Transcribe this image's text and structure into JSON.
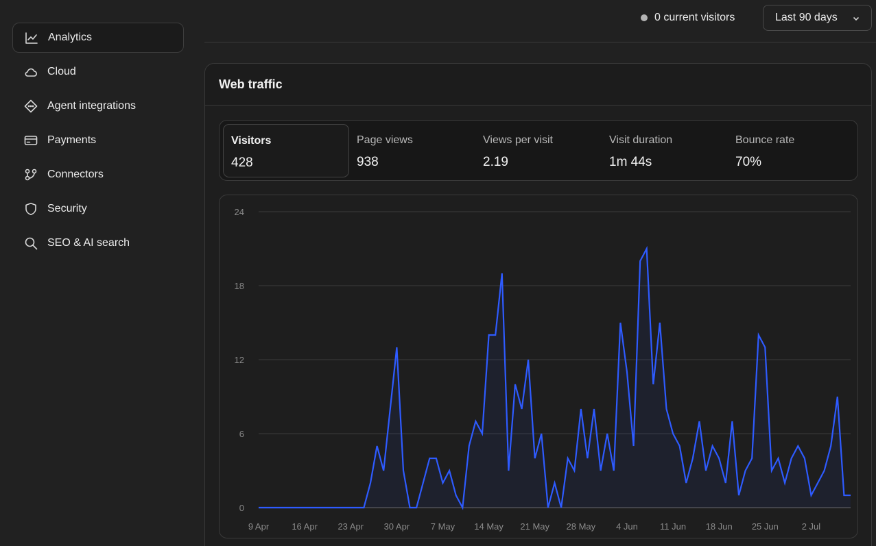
{
  "sidebar": {
    "items": [
      {
        "label": "Analytics",
        "icon": "chart-line-icon",
        "active": true
      },
      {
        "label": "Cloud",
        "icon": "cloud-icon"
      },
      {
        "label": "Agent integrations",
        "icon": "agent-diamond-icon"
      },
      {
        "label": "Payments",
        "icon": "credit-card-icon"
      },
      {
        "label": "Connectors",
        "icon": "connectors-icon"
      },
      {
        "label": "Security",
        "icon": "shield-icon"
      },
      {
        "label": "SEO & AI search",
        "icon": "search-icon"
      }
    ]
  },
  "topbar": {
    "current_visitors": "0 current visitors",
    "range": "Last 90 days"
  },
  "card": {
    "title": "Web traffic",
    "stats": [
      {
        "label": "Visitors",
        "value": "428",
        "active": true
      },
      {
        "label": "Page views",
        "value": "938"
      },
      {
        "label": "Views per visit",
        "value": "2.19"
      },
      {
        "label": "Visit duration",
        "value": "1m 44s"
      },
      {
        "label": "Bounce rate",
        "value": "70%"
      }
    ]
  },
  "chart_data": {
    "type": "area",
    "ylim": [
      0,
      24
    ],
    "yticks": [
      0,
      6,
      12,
      18,
      24
    ],
    "xtick_labels": [
      "9 Apr",
      "16 Apr",
      "23 Apr",
      "30 Apr",
      "7 May",
      "14 May",
      "21 May",
      "28 May",
      "4 Jun",
      "11 Jun",
      "18 Jun",
      "25 Jun",
      "2 Jul"
    ],
    "grid": true,
    "line_color": "#2e5bff",
    "series": [
      {
        "values": [
          0,
          0,
          0,
          0,
          0,
          0,
          0,
          0,
          0,
          0,
          0,
          0,
          0,
          0,
          0,
          0,
          0,
          2,
          5,
          3,
          8,
          13,
          3,
          0,
          0,
          2,
          4,
          4,
          2,
          3,
          1,
          0,
          5,
          7,
          6,
          14,
          14,
          19,
          3,
          10,
          8,
          12,
          4,
          6,
          0,
          2,
          0,
          4,
          3,
          8,
          4,
          8,
          3,
          6,
          3,
          15,
          11,
          5,
          20,
          21,
          10,
          15,
          8,
          6,
          5,
          2,
          4,
          7,
          3,
          5,
          4,
          2,
          7,
          1,
          3,
          4,
          14,
          13,
          3,
          4,
          2,
          4,
          5,
          4,
          1,
          2,
          3,
          5,
          9,
          1,
          1
        ]
      }
    ]
  }
}
